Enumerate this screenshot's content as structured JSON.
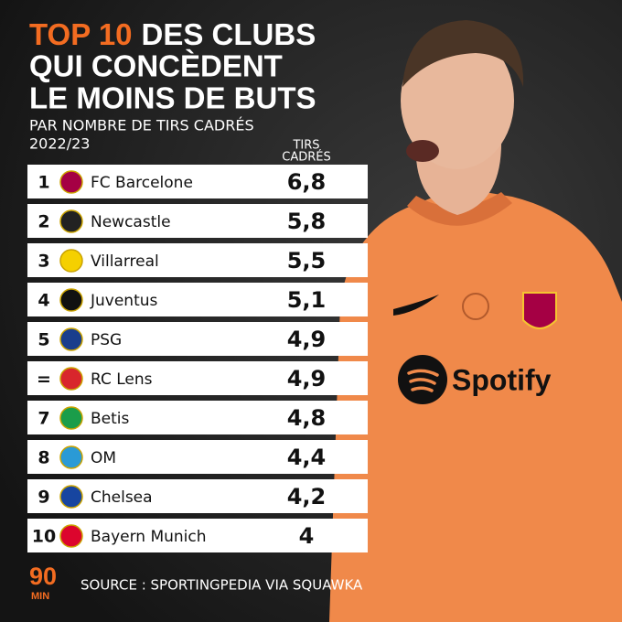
{
  "header": {
    "title_highlight": "TOP 10",
    "title_rest": "DES CLUBS",
    "title_line2": "QUI CONCÈDENT",
    "title_line3": "LE MOINS DE BUTS",
    "subtitle": "PAR NOMBRE DE TIRS CADRÉS",
    "season": "2022/23"
  },
  "table": {
    "column_header": [
      "TIRS",
      "CADRÉS"
    ],
    "rows": [
      [
        "1",
        "FC Barcelone",
        "6,8"
      ],
      [
        "2",
        "Newcastle",
        "5,8"
      ],
      [
        "3",
        "Villarreal",
        "5,5"
      ],
      [
        "4",
        "Juventus",
        "5,1"
      ],
      [
        "5",
        "PSG",
        "4,9"
      ],
      [
        "=",
        "RC Lens",
        "4,9"
      ],
      [
        "7",
        "Betis",
        "4,8"
      ],
      [
        "8",
        "OM",
        "4,4"
      ],
      [
        "9",
        "Chelsea",
        "4,2"
      ],
      [
        "10",
        "Bayern Munich",
        "4"
      ]
    ]
  },
  "photo": {
    "sponsor": "Spotify"
  },
  "footer": {
    "logo": [
      "90",
      "MIN"
    ],
    "source": "SOURCE : SPORTINGPEDIA VIA SQUAWKA"
  }
}
